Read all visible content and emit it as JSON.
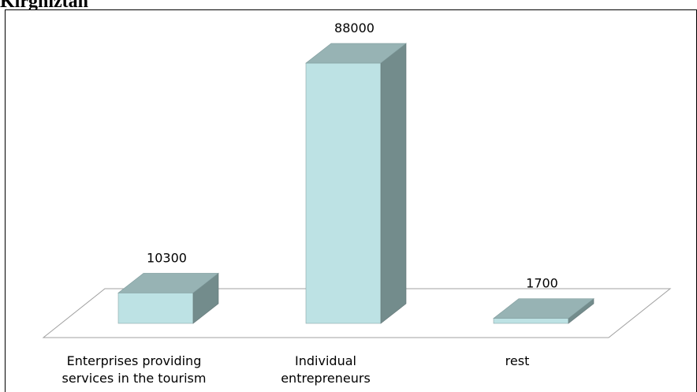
{
  "heading": "Kirghiztan",
  "colors": {
    "bar_front": "#bde2e4",
    "bar_top": "#97b3b4",
    "bar_side": "#738c8c",
    "floor_stroke": "#a0a0a0"
  },
  "chart_data": {
    "type": "bar",
    "categories": [
      [
        "Enterprises providing",
        "services in the tourism"
      ],
      [
        "Individual",
        "entrepreneurs"
      ],
      [
        "rest"
      ]
    ],
    "values": [
      10300,
      88000,
      1700
    ],
    "value_labels": [
      "10300",
      "88000",
      "1700"
    ],
    "title": "",
    "xlabel": "",
    "ylabel": "",
    "ylim": [
      0,
      88000
    ],
    "grid": false,
    "legend": "none",
    "style": "3d-column"
  }
}
